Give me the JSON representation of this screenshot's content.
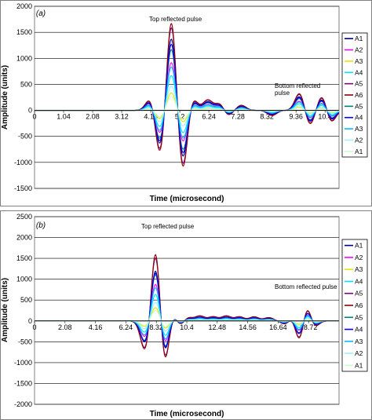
{
  "chart_data": [
    {
      "panel": "(a)",
      "type": "line",
      "ylabel": "Amplitude (units)",
      "xlabel": "Time (microsecond)",
      "ylim": [
        -1500,
        2000
      ],
      "yticks": [
        -1500,
        -1000,
        -500,
        0,
        500,
        1000,
        1500,
        2000
      ],
      "xlim": [
        0,
        10.9
      ],
      "xticks": [
        "0",
        "1.04",
        "2.08",
        "3.12",
        "4.16",
        "5.2",
        "6.24",
        "7.28",
        "8.32",
        "9.36",
        "10.4"
      ],
      "grid": true,
      "legend_position": "right",
      "annotations": [
        "Top reflected pulse",
        "Bottom reflected pulse"
      ],
      "legend": [
        "A1",
        "A2",
        "A3",
        "A4",
        "A5",
        "A6",
        "A5",
        "A4",
        "A3",
        "A2",
        "A1"
      ],
      "series_colors": [
        "#000080",
        "#ff00ff",
        "#e6e600",
        "#00e5ff",
        "#800080",
        "#8b0000",
        "#008080",
        "#0000ff",
        "#00bfff",
        "#9cf0ff",
        "#c8ffc8"
      ],
      "series_scale": [
        0.82,
        0.55,
        0.2,
        0.4,
        0.95,
        1.0,
        0.7,
        0.76,
        0.5,
        0.28,
        0.16
      ],
      "pulses": [
        {
          "t": 4.16,
          "a": 250
        },
        {
          "t": 4.5,
          "a": -900
        },
        {
          "t": 4.9,
          "a": 1800
        },
        {
          "t": 5.3,
          "a": -1200
        },
        {
          "t": 5.65,
          "a": 250
        },
        {
          "t": 6.2,
          "a": 200
        },
        {
          "t": 6.65,
          "a": 150
        },
        {
          "t": 6.9,
          "a": -120
        },
        {
          "t": 7.4,
          "a": 100
        },
        {
          "t": 8.5,
          "a": -100
        },
        {
          "t": 9.5,
          "a": 350
        },
        {
          "t": 9.85,
          "a": -300
        },
        {
          "t": 10.3,
          "a": 300
        },
        {
          "t": 10.6,
          "a": -250
        }
      ]
    },
    {
      "panel": "(b)",
      "type": "line",
      "ylabel": "Amplitude (units)",
      "xlabel": "Time (microsecond)",
      "ylim": [
        -2000,
        2500
      ],
      "yticks": [
        -2000,
        -1500,
        -1000,
        -500,
        0,
        500,
        1000,
        1500,
        2000,
        2500
      ],
      "xlim": [
        0,
        20.8
      ],
      "xticks": [
        "0",
        "2.08",
        "4.16",
        "6.24",
        "8.32",
        "10.4",
        "12.48",
        "14.56",
        "16.64",
        "18.72"
      ],
      "grid": true,
      "legend_position": "right",
      "annotations": [
        "Top reflected pulse",
        "Bottom reflected pulse"
      ],
      "legend": [
        "A1",
        "A2",
        "A3",
        "A4",
        "A5",
        "A6",
        "A5",
        "A4",
        "A3",
        "A2",
        "A1"
      ],
      "series_colors": [
        "#000080",
        "#ff00ff",
        "#e6e600",
        "#00e5ff",
        "#800080",
        "#8b0000",
        "#008080",
        "#0000ff",
        "#00bfff",
        "#9cf0ff",
        "#c8ffc8"
      ],
      "series_scale": [
        0.75,
        0.55,
        0.2,
        0.4,
        0.95,
        1.0,
        0.7,
        0.72,
        0.5,
        0.28,
        0.16
      ],
      "pulses": [
        {
          "t": 7.6,
          "a": -800
        },
        {
          "t": 8.3,
          "a": 1950
        },
        {
          "t": 8.85,
          "a": -1300
        },
        {
          "t": 9.35,
          "a": 250
        },
        {
          "t": 10.0,
          "a": -150
        },
        {
          "t": 10.4,
          "a": 120
        },
        {
          "t": 11.3,
          "a": 120
        },
        {
          "t": 12.2,
          "a": 100
        },
        {
          "t": 13.1,
          "a": 120
        },
        {
          "t": 14.0,
          "a": 100
        },
        {
          "t": 15.0,
          "a": 100
        },
        {
          "t": 16.0,
          "a": 80
        },
        {
          "t": 17.2,
          "a": -100
        },
        {
          "t": 17.75,
          "a": 250
        },
        {
          "t": 18.1,
          "a": -700
        },
        {
          "t": 18.6,
          "a": 550
        },
        {
          "t": 19.0,
          "a": -250
        }
      ]
    }
  ],
  "panel_a": {
    "label": "(a)",
    "top_annotation": "Top reflected pulse",
    "bottom_annotation": "Bottom reflected pulse"
  },
  "panel_b": {
    "label": "(b)",
    "top_annotation": "Top reflected pulse",
    "bottom_annotation": "Bottom reflected pulse"
  }
}
